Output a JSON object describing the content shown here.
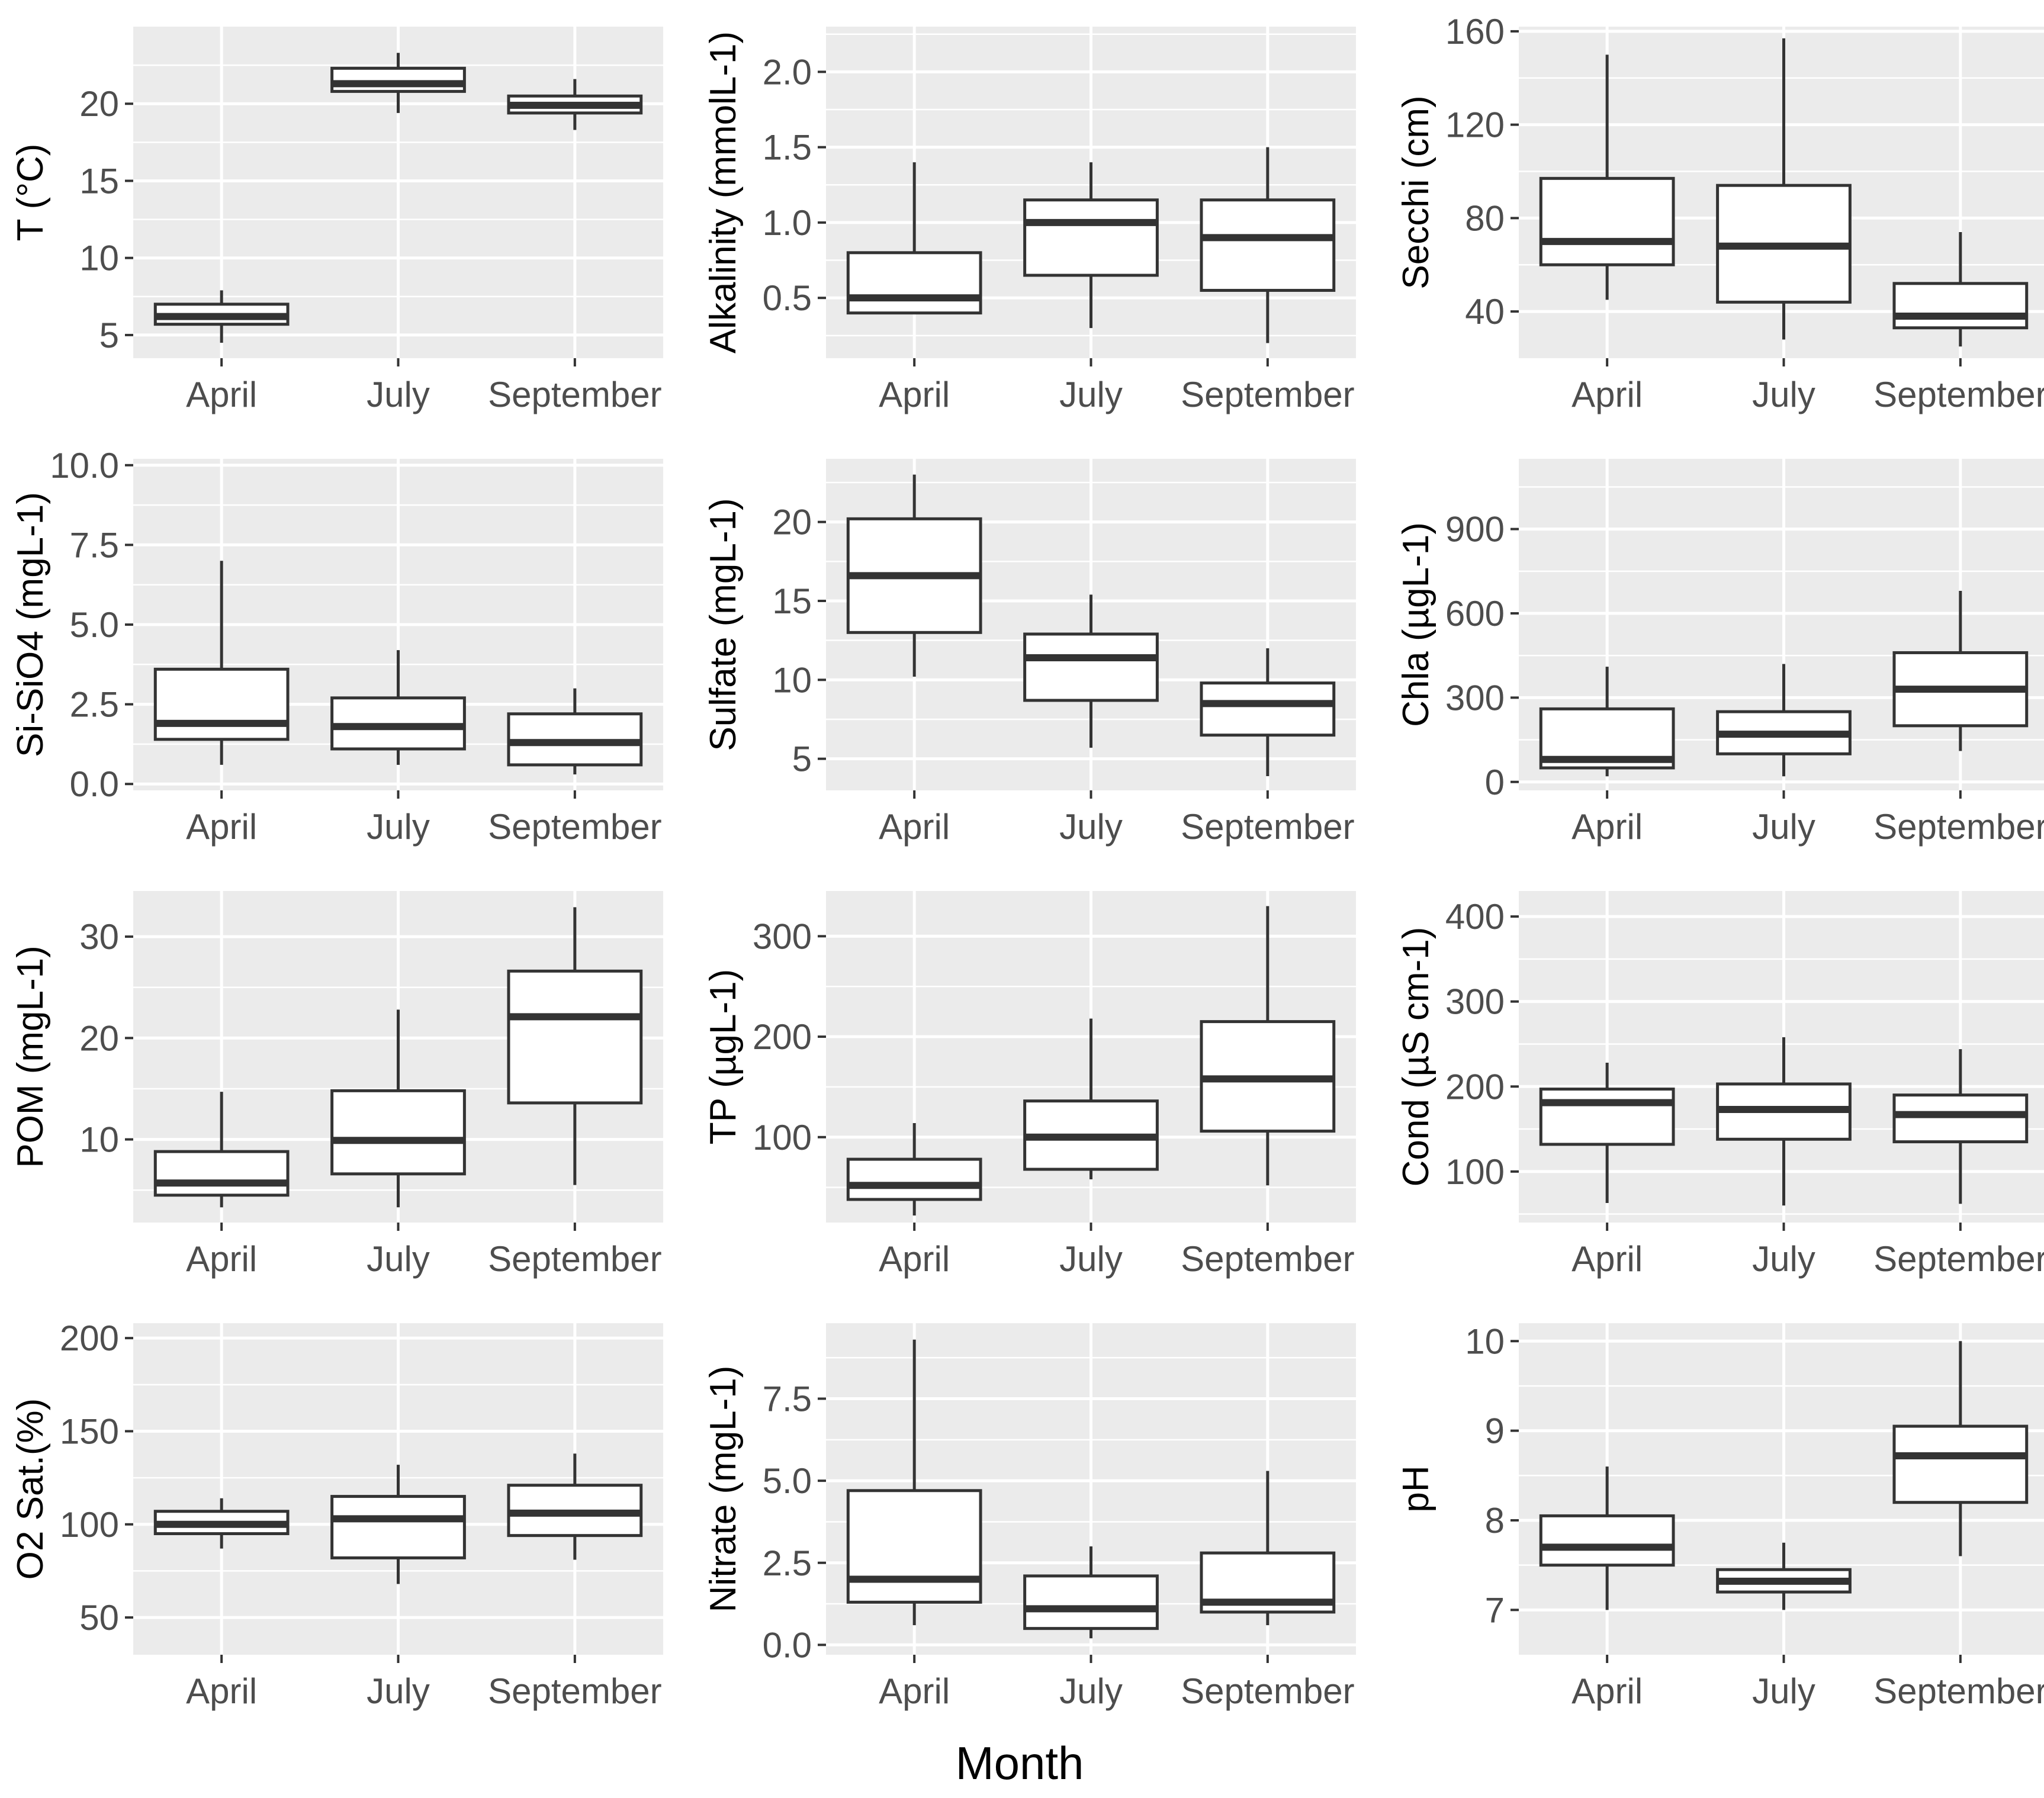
{
  "figure": {
    "xlabel": "Month"
  },
  "chart_data": [
    {
      "type": "boxplot",
      "ylabel": "T (°C)",
      "ylim": [
        3.5,
        25.0
      ],
      "yticks": [
        5,
        10,
        15,
        20
      ],
      "ytick_labels": [
        "5",
        "10",
        "15",
        "20"
      ],
      "categories": [
        "April",
        "July",
        "September"
      ],
      "boxes": [
        {
          "category": "April",
          "min": 4.5,
          "q1": 5.7,
          "median": 6.2,
          "q3": 7.0,
          "max": 7.9
        },
        {
          "category": "July",
          "min": 19.4,
          "q1": 20.8,
          "median": 21.3,
          "q3": 22.3,
          "max": 23.3
        },
        {
          "category": "September",
          "min": 18.3,
          "q1": 19.4,
          "median": 19.9,
          "q3": 20.5,
          "max": 21.6
        }
      ]
    },
    {
      "type": "boxplot",
      "ylabel": "Alkalinity (mmolL-1)",
      "ylim": [
        0.1,
        2.3
      ],
      "yticks": [
        0.5,
        1.0,
        1.5,
        2.0
      ],
      "ytick_labels": [
        "0.5",
        "1.0",
        "1.5",
        "2.0"
      ],
      "categories": [
        "April",
        "July",
        "September"
      ],
      "boxes": [
        {
          "category": "April",
          "min": 0.4,
          "q1": 0.4,
          "median": 0.5,
          "q3": 0.8,
          "max": 1.4
        },
        {
          "category": "July",
          "min": 0.3,
          "q1": 0.65,
          "median": 1.0,
          "q3": 1.15,
          "max": 1.4
        },
        {
          "category": "September",
          "min": 0.2,
          "q1": 0.55,
          "median": 0.9,
          "q3": 1.15,
          "max": 1.5
        }
      ]
    },
    {
      "type": "boxplot",
      "ylabel": "Secchi (cm)",
      "ylim": [
        20,
        162
      ],
      "yticks": [
        40,
        80,
        120,
        160
      ],
      "ytick_labels": [
        "40",
        "80",
        "120",
        "160"
      ],
      "categories": [
        "April",
        "July",
        "September"
      ],
      "boxes": [
        {
          "category": "April",
          "min": 45,
          "q1": 60,
          "median": 70,
          "q3": 97,
          "max": 150
        },
        {
          "category": "July",
          "min": 28,
          "q1": 44,
          "median": 68,
          "q3": 94,
          "max": 157
        },
        {
          "category": "September",
          "min": 25,
          "q1": 33,
          "median": 38,
          "q3": 52,
          "max": 74
        }
      ]
    },
    {
      "type": "boxplot",
      "ylabel": "Si-SiO4 (mgL-1)",
      "ylim": [
        -0.2,
        10.2
      ],
      "yticks": [
        0.0,
        2.5,
        5.0,
        7.5,
        10.0
      ],
      "ytick_labels": [
        "0.0",
        "2.5",
        "5.0",
        "7.5",
        "10.0"
      ],
      "categories": [
        "April",
        "July",
        "September"
      ],
      "boxes": [
        {
          "category": "April",
          "min": 0.6,
          "q1": 1.4,
          "median": 1.9,
          "q3": 3.6,
          "max": 7.0
        },
        {
          "category": "July",
          "min": 0.6,
          "q1": 1.1,
          "median": 1.8,
          "q3": 2.7,
          "max": 4.2
        },
        {
          "category": "September",
          "min": 0.3,
          "q1": 0.6,
          "median": 1.3,
          "q3": 2.2,
          "max": 3.0
        }
      ]
    },
    {
      "type": "boxplot",
      "ylabel": "Sulfate (mgL-1)",
      "ylim": [
        3.0,
        24.0
      ],
      "yticks": [
        5,
        10,
        15,
        20
      ],
      "ytick_labels": [
        "5",
        "10",
        "15",
        "20"
      ],
      "categories": [
        "April",
        "July",
        "September"
      ],
      "boxes": [
        {
          "category": "April",
          "min": 10.2,
          "q1": 13.0,
          "median": 16.6,
          "q3": 20.2,
          "max": 23.0
        },
        {
          "category": "July",
          "min": 5.7,
          "q1": 8.7,
          "median": 11.4,
          "q3": 12.9,
          "max": 15.4
        },
        {
          "category": "September",
          "min": 3.9,
          "q1": 6.5,
          "median": 8.5,
          "q3": 9.8,
          "max": 12.0
        }
      ]
    },
    {
      "type": "boxplot",
      "ylabel": "Chla (µgL-1)",
      "ylim": [
        -30,
        1150
      ],
      "yticks": [
        0,
        300,
        600,
        900
      ],
      "ytick_labels": [
        "0",
        "300",
        "600",
        "900"
      ],
      "categories": [
        "April",
        "July",
        "September"
      ],
      "boxes": [
        {
          "category": "April",
          "min": 20,
          "q1": 50,
          "median": 80,
          "q3": 260,
          "max": 410
        },
        {
          "category": "July",
          "min": 20,
          "q1": 100,
          "median": 170,
          "q3": 250,
          "max": 420
        },
        {
          "category": "September",
          "min": 110,
          "q1": 200,
          "median": 330,
          "q3": 460,
          "max": 680
        }
      ]
    },
    {
      "type": "boxplot",
      "ylabel": "POM (mgL-1)",
      "ylim": [
        1.8,
        34.5
      ],
      "yticks": [
        10,
        20,
        30
      ],
      "ytick_labels": [
        "10",
        "20",
        "30"
      ],
      "categories": [
        "April",
        "July",
        "September"
      ],
      "boxes": [
        {
          "category": "April",
          "min": 3.3,
          "q1": 4.5,
          "median": 5.7,
          "q3": 8.8,
          "max": 14.7
        },
        {
          "category": "July",
          "min": 3.3,
          "q1": 6.6,
          "median": 9.9,
          "q3": 14.8,
          "max": 22.8
        },
        {
          "category": "September",
          "min": 5.5,
          "q1": 13.6,
          "median": 22.1,
          "q3": 26.6,
          "max": 32.9
        }
      ]
    },
    {
      "type": "boxplot",
      "ylabel": "TP (µgL-1)",
      "ylim": [
        15,
        345
      ],
      "yticks": [
        100,
        200,
        300
      ],
      "ytick_labels": [
        "100",
        "200",
        "300"
      ],
      "categories": [
        "April",
        "July",
        "September"
      ],
      "boxes": [
        {
          "category": "April",
          "min": 22,
          "q1": 38,
          "median": 52,
          "q3": 78,
          "max": 114
        },
        {
          "category": "July",
          "min": 58,
          "q1": 68,
          "median": 100,
          "q3": 136,
          "max": 218
        },
        {
          "category": "September",
          "min": 52,
          "q1": 106,
          "median": 158,
          "q3": 215,
          "max": 330
        }
      ]
    },
    {
      "type": "boxplot",
      "ylabel": "Cond (µS cm-1)",
      "ylim": [
        40,
        430
      ],
      "yticks": [
        100,
        200,
        300,
        400
      ],
      "ytick_labels": [
        "100",
        "200",
        "300",
        "400"
      ],
      "categories": [
        "April",
        "July",
        "September"
      ],
      "boxes": [
        {
          "category": "April",
          "min": 63,
          "q1": 132,
          "median": 181,
          "q3": 197,
          "max": 228
        },
        {
          "category": "July",
          "min": 60,
          "q1": 138,
          "median": 173,
          "q3": 203,
          "max": 258
        },
        {
          "category": "September",
          "min": 62,
          "q1": 135,
          "median": 167,
          "q3": 190,
          "max": 244
        }
      ]
    },
    {
      "type": "boxplot",
      "ylabel": "O2 Sat.(%)",
      "ylim": [
        30,
        208
      ],
      "yticks": [
        50,
        100,
        150,
        200
      ],
      "ytick_labels": [
        "50",
        "100",
        "150",
        "200"
      ],
      "categories": [
        "April",
        "July",
        "September"
      ],
      "boxes": [
        {
          "category": "April",
          "min": 87,
          "q1": 95,
          "median": 100,
          "q3": 107,
          "max": 114
        },
        {
          "category": "July",
          "min": 68,
          "q1": 82,
          "median": 103,
          "q3": 115,
          "max": 132
        },
        {
          "category": "September",
          "min": 81,
          "q1": 94,
          "median": 106,
          "q3": 121,
          "max": 138
        }
      ]
    },
    {
      "type": "boxplot",
      "ylabel": "Nitrate (mgL-1)",
      "ylim": [
        -0.3,
        9.8
      ],
      "yticks": [
        0.0,
        2.5,
        5.0,
        7.5
      ],
      "ytick_labels": [
        "0.0",
        "2.5",
        "5.0",
        "7.5"
      ],
      "categories": [
        "April",
        "July",
        "September"
      ],
      "boxes": [
        {
          "category": "April",
          "min": 0.6,
          "q1": 1.3,
          "median": 2.0,
          "q3": 4.7,
          "max": 9.3
        },
        {
          "category": "July",
          "min": 0.2,
          "q1": 0.5,
          "median": 1.1,
          "q3": 2.1,
          "max": 3.0
        },
        {
          "category": "September",
          "min": 0.6,
          "q1": 1.0,
          "median": 1.3,
          "q3": 2.8,
          "max": 5.3
        }
      ]
    },
    {
      "type": "boxplot",
      "ylabel": "pH",
      "ylim": [
        6.5,
        10.2
      ],
      "yticks": [
        7,
        8,
        9,
        10
      ],
      "ytick_labels": [
        "7",
        "8",
        "9",
        "10"
      ],
      "categories": [
        "April",
        "July",
        "September"
      ],
      "boxes": [
        {
          "category": "April",
          "min": 7.0,
          "q1": 7.5,
          "median": 7.7,
          "q3": 8.05,
          "max": 8.6
        },
        {
          "category": "July",
          "min": 7.0,
          "q1": 7.2,
          "median": 7.32,
          "q3": 7.45,
          "max": 7.75
        },
        {
          "category": "September",
          "min": 7.6,
          "q1": 8.2,
          "median": 8.72,
          "q3": 9.05,
          "max": 10.0
        }
      ]
    }
  ]
}
